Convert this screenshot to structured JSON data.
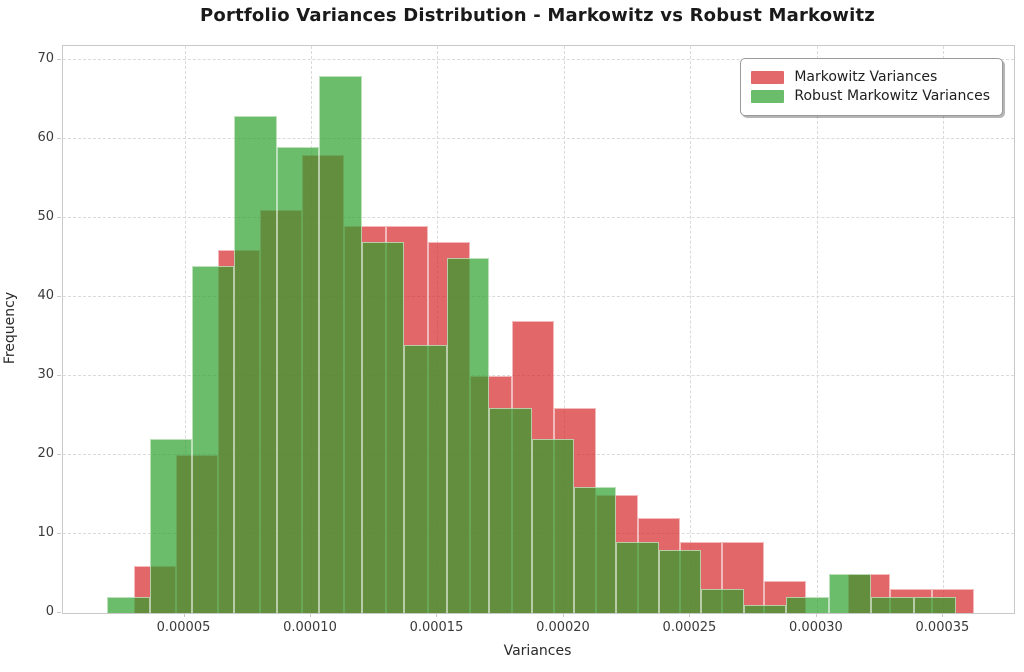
{
  "title": "Portfolio Variances Distribution - Markowitz vs Robust Markowitz",
  "axes": {
    "xlabel": "Variances",
    "ylabel": "Frequency",
    "x_min": 1.97e-06,
    "x_max": 0.0003779,
    "y_min": 0,
    "y_max": 71.8,
    "x_ticks": [
      {
        "value": 5e-05,
        "label": "0.00005"
      },
      {
        "value": 0.0001,
        "label": "0.00010"
      },
      {
        "value": 0.00015,
        "label": "0.00015"
      },
      {
        "value": 0.0002,
        "label": "0.00020"
      },
      {
        "value": 0.00025,
        "label": "0.00025"
      },
      {
        "value": 0.0003,
        "label": "0.00030"
      },
      {
        "value": 0.00035,
        "label": "0.00035"
      }
    ],
    "y_ticks": [
      0,
      10,
      20,
      30,
      40,
      50,
      60,
      70
    ],
    "grid": "dashed",
    "grid_color": "#dadada",
    "spine_color": "#c9c9c9"
  },
  "legend": {
    "position": "upper right",
    "items": [
      {
        "label": "Markowitz Variances",
        "color": "#e26869"
      },
      {
        "label": "Robust Markowitz Variances",
        "color": "#6bbc6b"
      }
    ]
  },
  "chart_data": {
    "type": "histogram",
    "title": "Portfolio Variances Distribution - Markowitz vs Robust Markowitz",
    "xlabel": "Variances",
    "ylabel": "Frequency",
    "xlim": [
      1.97e-06,
      0.0003779
    ],
    "ylim": [
      0,
      71.8
    ],
    "legend_position": "upper right",
    "series": [
      {
        "name": "Markowitz Variances",
        "color": "#d62728",
        "alpha": 0.7,
        "bin_start": 3e-05,
        "bin_width": 1.66e-05,
        "counts": [
          6,
          20,
          46,
          51,
          58,
          49,
          49,
          47,
          30,
          37,
          26,
          15,
          12,
          9,
          9,
          4,
          0,
          5,
          3,
          3
        ]
      },
      {
        "name": "Robust Markowitz Variances",
        "color": "#2ca02c",
        "alpha": 0.7,
        "bin_start": 1.94e-05,
        "bin_width": 1.678e-05,
        "counts": [
          2,
          22,
          44,
          63,
          59,
          68,
          47,
          34,
          45,
          26,
          22,
          16,
          9,
          8,
          3,
          1,
          2,
          5,
          2,
          2
        ]
      }
    ]
  }
}
